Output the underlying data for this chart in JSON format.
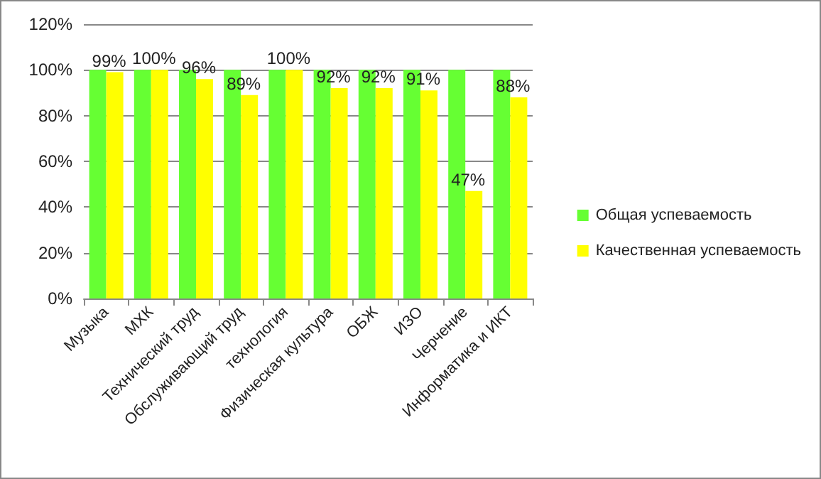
{
  "chart_data": {
    "type": "bar",
    "categories": [
      "Музыка",
      "МХК",
      "Технический труд",
      "Обслуживающий труд",
      "технология",
      "Физическая культура",
      "ОБЖ",
      "ИЗО",
      "Черчение",
      "Информатика и ИКТ"
    ],
    "series": [
      {
        "name": "Общая успеваемость",
        "color": "#66ff33",
        "values": [
          100,
          100,
          100,
          100,
          100,
          100,
          100,
          100,
          100,
          100
        ]
      },
      {
        "name": "Качественная успеваемость",
        "color": "#ffff00",
        "values": [
          99,
          100,
          96,
          89,
          100,
          92,
          92,
          91,
          47,
          88
        ],
        "value_labels": [
          "99%",
          "100%",
          "96%",
          "89%",
          "100%",
          "92%",
          "92%",
          "91%",
          "47%",
          "88%"
        ]
      }
    ],
    "ylim": [
      0,
      120
    ],
    "yticks": [
      {
        "value": 0,
        "label": "0%"
      },
      {
        "value": 20,
        "label": "20%"
      },
      {
        "value": 40,
        "label": "40%"
      },
      {
        "value": 60,
        "label": "60%"
      },
      {
        "value": 80,
        "label": "80%"
      },
      {
        "value": 100,
        "label": "100%"
      },
      {
        "value": 120,
        "label": "120%"
      }
    ],
    "grid": "y",
    "legend": "right"
  }
}
